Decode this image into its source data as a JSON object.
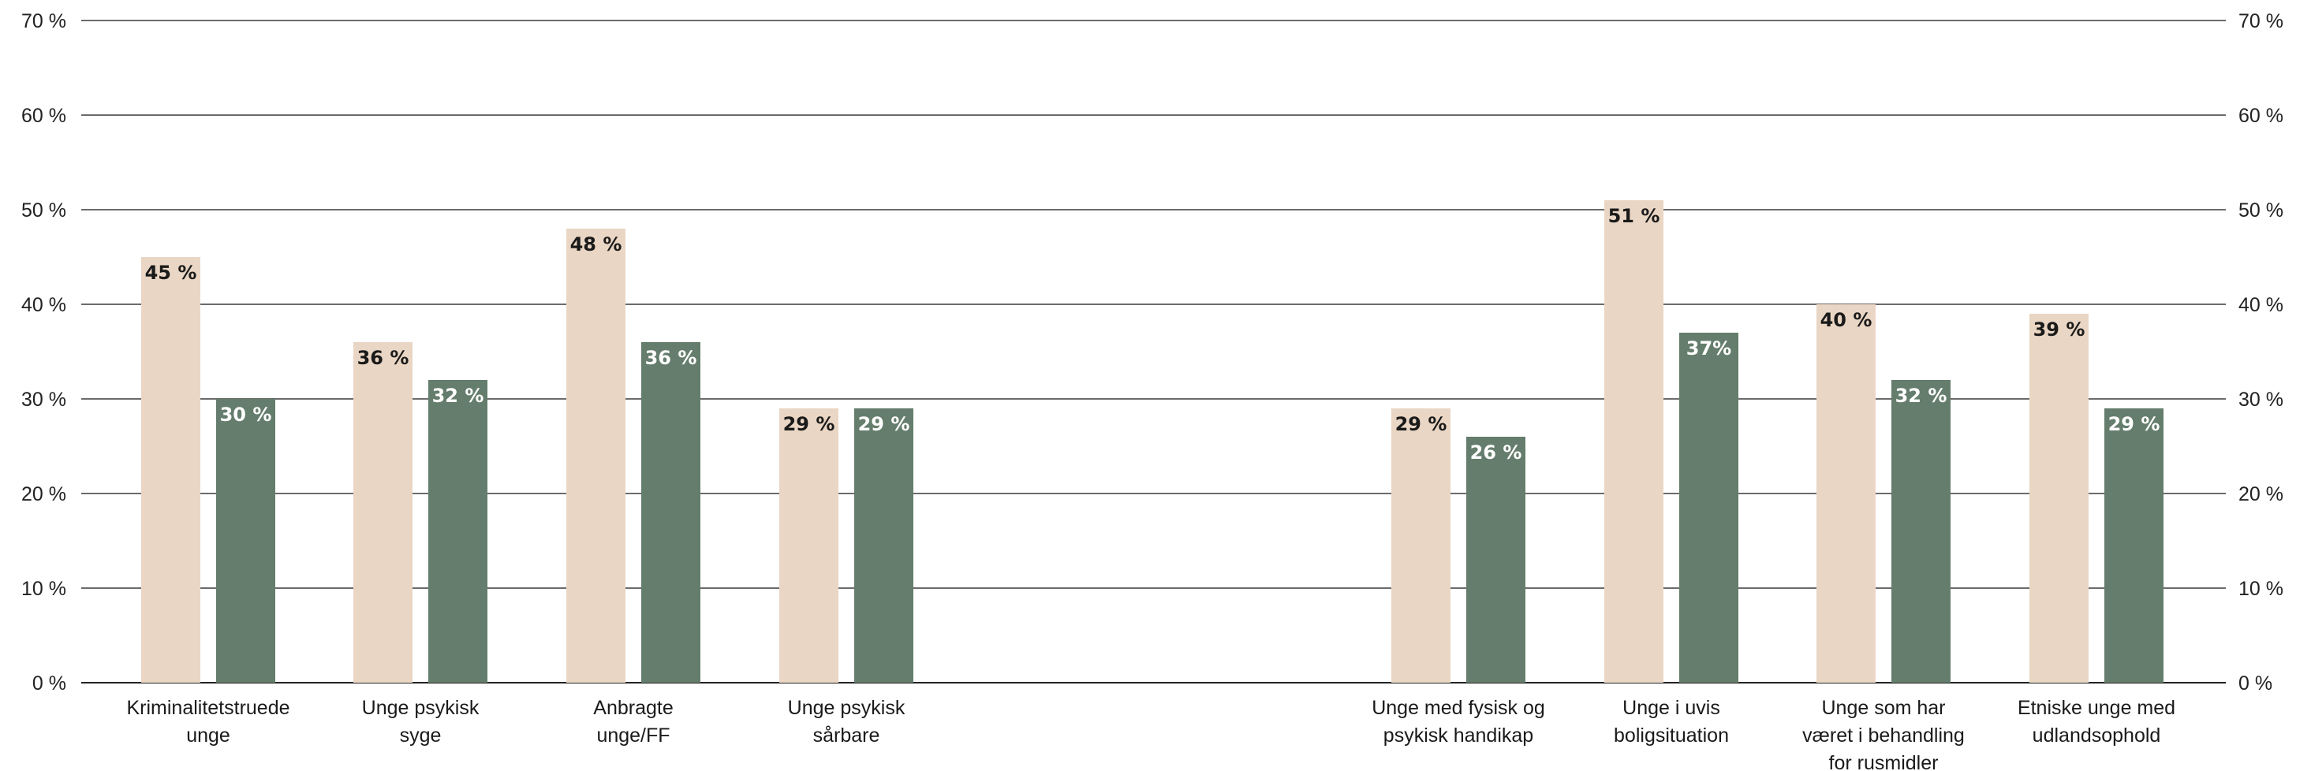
{
  "chart_data": {
    "type": "bar",
    "title": "",
    "xlabel": "",
    "ylabel": "",
    "ylim": [
      0,
      70
    ],
    "yticks": [
      0,
      10,
      20,
      30,
      40,
      50,
      60,
      70
    ],
    "ytick_labels": [
      "0 %",
      "10 %",
      "20 %",
      "30 %",
      "40 %",
      "50 %",
      "60 %",
      "70 %"
    ],
    "grid": true,
    "legend": "none",
    "categories": [
      [
        "Kriminalitetstruede",
        "unge"
      ],
      [
        "Unge psykisk",
        "syge"
      ],
      [
        "Anbragte",
        "unge/FF"
      ],
      [
        "Unge psykisk",
        "sårbare"
      ],
      [
        "Unge med fysisk og",
        "psykisk handikap"
      ],
      [
        "Unge i uvis",
        "boligsituation"
      ],
      [
        "Unge som har",
        "været i behandling",
        "for rusmidler"
      ],
      [
        "Etniske unge med",
        "udlandsophold"
      ]
    ],
    "groups": [
      [
        0,
        1,
        2,
        3
      ],
      [
        4,
        5,
        6,
        7
      ]
    ],
    "series": [
      {
        "color": "#ead6c4",
        "label_color": "#1a1a1a",
        "values": [
          45,
          36,
          48,
          29,
          29,
          51,
          40,
          39
        ],
        "labels": [
          "45 %",
          "36 %",
          "48 %",
          "29 %",
          "29 %",
          "51 %",
          "40 %",
          "39 %"
        ]
      },
      {
        "color": "#657d6c",
        "label_color": "#ffffff",
        "values": [
          30,
          32,
          36,
          29,
          26,
          37,
          32,
          29
        ],
        "labels": [
          "30 %",
          "32 %",
          "36 %",
          "29 %",
          "26 %",
          "37%",
          "32 %",
          "29 %"
        ]
      }
    ]
  },
  "colors": {
    "grid": "#3a3a3a",
    "axis": "#222222",
    "background": "#ffffff"
  }
}
